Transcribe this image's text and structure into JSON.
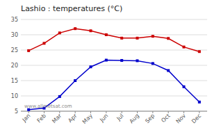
{
  "chart_data": {
    "type": "line",
    "title": "Lashio : temperatures (°C)",
    "categories": [
      "Jan",
      "Feb",
      "Mar",
      "Apr",
      "May",
      "Jun",
      "Jul",
      "Aug",
      "Sep",
      "Oct",
      "Nov",
      "Dec"
    ],
    "series": [
      {
        "color": "#cc0000",
        "marker": "square",
        "values": [
          24.8,
          27.2,
          30.6,
          32.0,
          31.3,
          30.0,
          28.9,
          28.9,
          29.5,
          28.8,
          26.0,
          24.5
        ]
      },
      {
        "color": "#0000cc",
        "marker": "square",
        "values": [
          5.5,
          6.0,
          9.8,
          15.0,
          19.5,
          21.7,
          21.6,
          21.5,
          20.6,
          18.3,
          13.0,
          8.0
        ]
      }
    ],
    "ylim": [
      5,
      35
    ],
    "yticks": [
      5,
      10,
      15,
      20,
      25,
      30,
      35
    ],
    "grid": true,
    "annotations": [
      "www.allmetsat.com"
    ]
  }
}
